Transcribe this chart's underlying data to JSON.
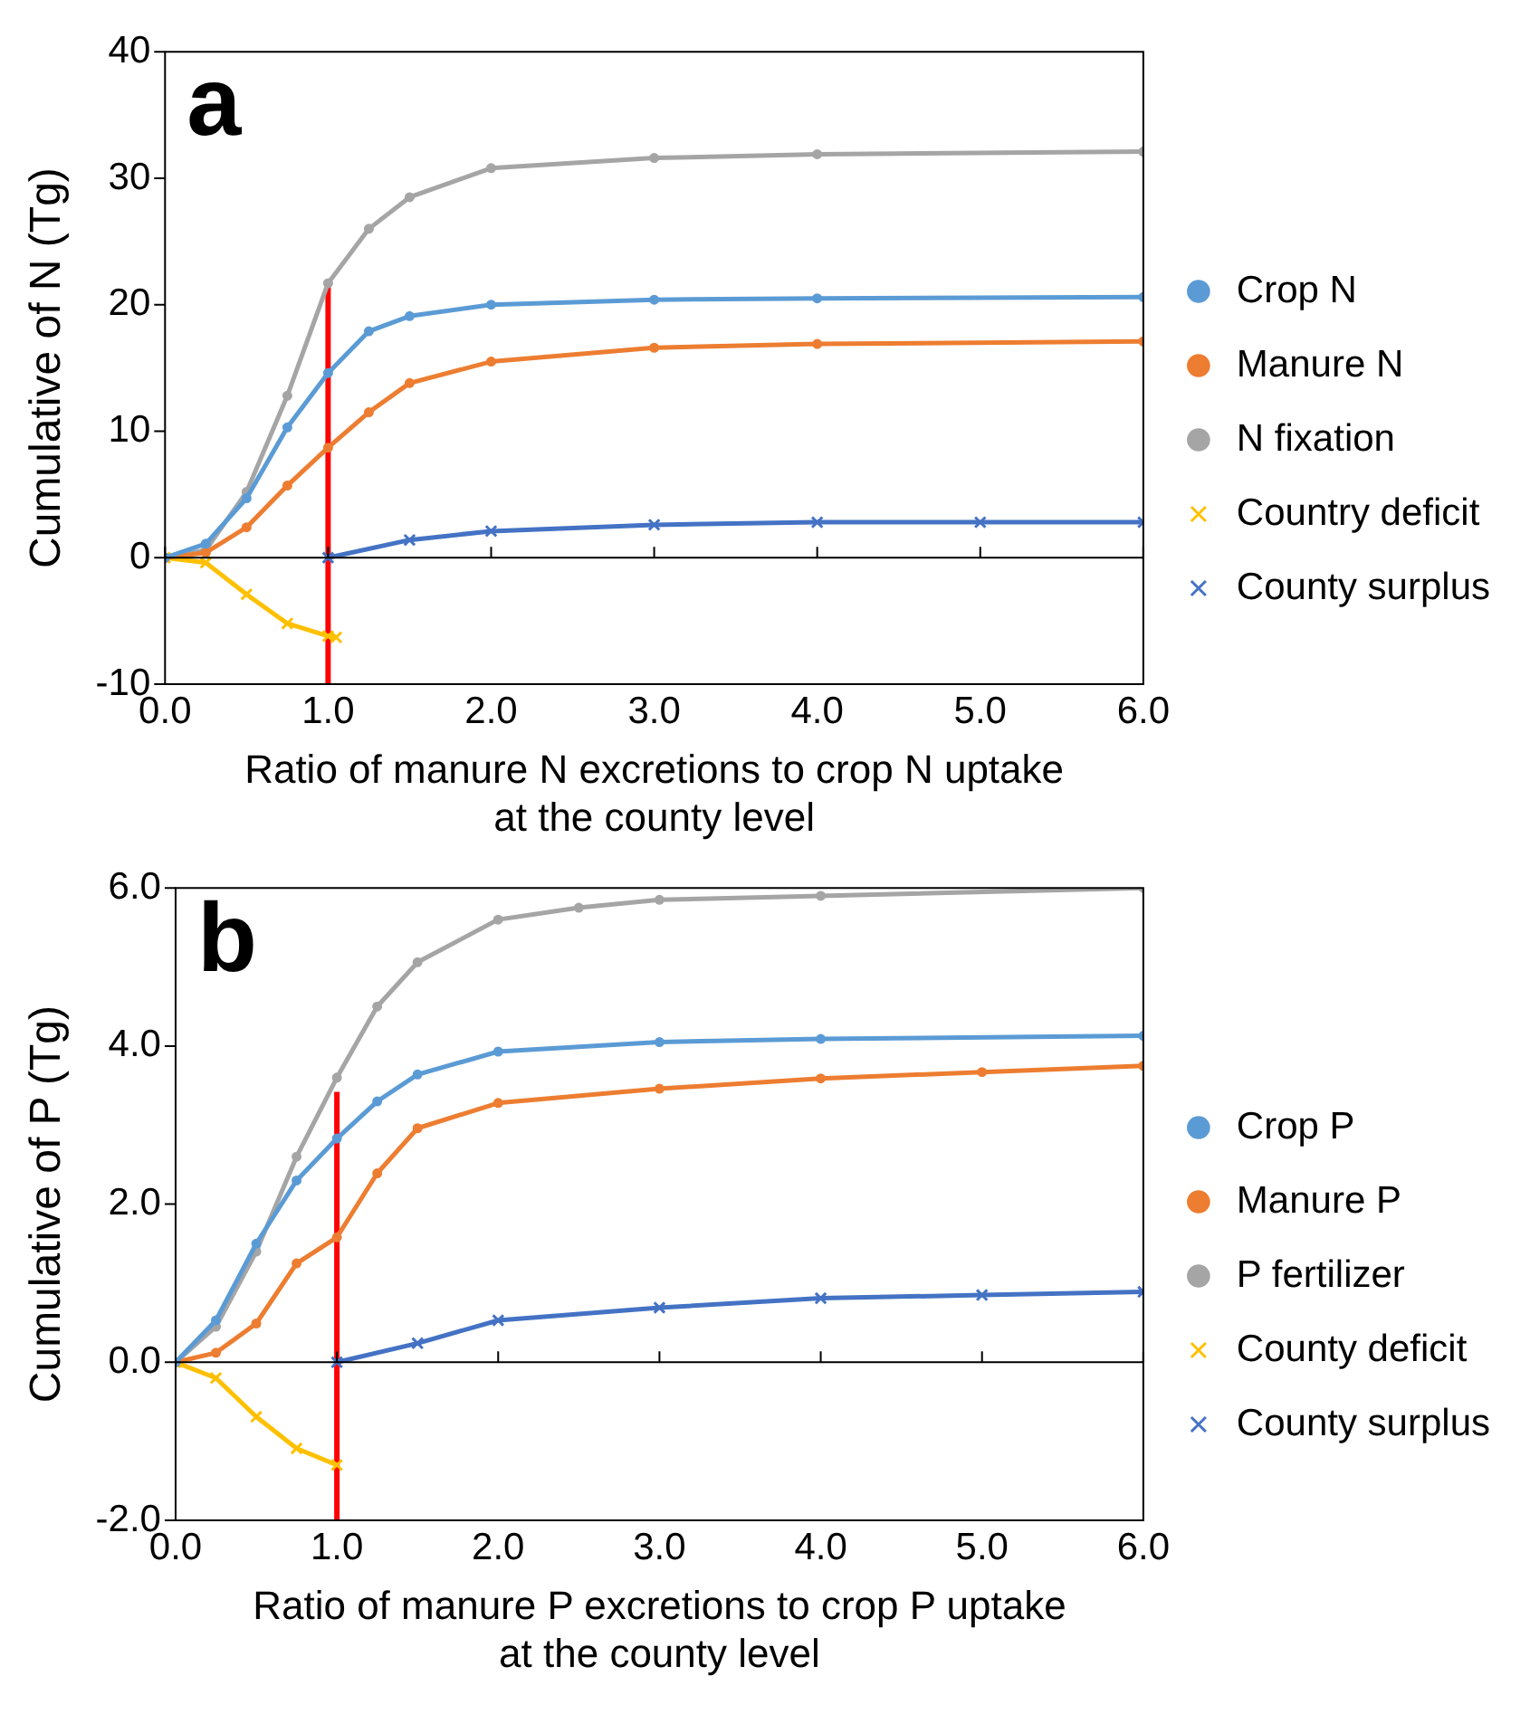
{
  "chart_data": [
    {
      "type": "line",
      "annotations": [
        "a"
      ],
      "xlabel": "Ratio of manure N excretions to crop N uptake\nat the county level",
      "ylabel": "Cumulative of N (Tg)",
      "legend": "right",
      "grid": false,
      "xlim": [
        0,
        6
      ],
      "xticks": [
        {
          "value": 0,
          "label": "0.0"
        },
        {
          "value": 1,
          "label": "1.0"
        },
        {
          "value": 2,
          "label": "2.0"
        },
        {
          "value": 3,
          "label": "3.0"
        },
        {
          "value": 4,
          "label": "4.0"
        },
        {
          "value": 5,
          "label": "5.0"
        },
        {
          "value": 6,
          "label": "6.0"
        }
      ],
      "ylim": [
        -10,
        40
      ],
      "yticks": [
        -10,
        0,
        10,
        20,
        30,
        40
      ],
      "ref_lines": [
        {
          "axis": "y",
          "value": 0,
          "color": "#000000"
        }
      ],
      "series": [
        {
          "name": "Crop N",
          "color": "#5b9bd5",
          "marker": "circle",
          "x": [
            0,
            0.25,
            0.5,
            0.75,
            1,
            1.25,
            1.5,
            2,
            3,
            4,
            6
          ],
          "values": [
            0,
            1.1,
            4.7,
            10.3,
            14.6,
            17.9,
            19.1,
            20,
            20.4,
            20.5,
            20.6
          ]
        },
        {
          "name": "Manure N",
          "color": "#ed7d31",
          "marker": "circle",
          "x": [
            0,
            0.25,
            0.5,
            0.75,
            1,
            1.25,
            1.5,
            2,
            3,
            4,
            6
          ],
          "values": [
            0,
            0.4,
            2.4,
            5.7,
            8.7,
            11.5,
            13.8,
            15.5,
            16.6,
            16.9,
            17.1
          ]
        },
        {
          "name": "N fixation",
          "color": "#a5a5a5",
          "marker": "circle",
          "x": [
            0,
            0.25,
            0.5,
            0.75,
            1,
            1.25,
            1.5,
            2,
            3,
            4,
            6
          ],
          "values": [
            0,
            0.6,
            5.2,
            12.8,
            21.7,
            26,
            28.5,
            30.8,
            31.6,
            31.9,
            32.1
          ]
        },
        {
          "name": "Country deficit",
          "color": "#ffc000",
          "marker": "cross",
          "x": [
            0,
            0.25,
            0.5,
            0.75,
            1,
            1.05
          ],
          "values": [
            0,
            -0.4,
            -2.9,
            -5.2,
            -6.2,
            -6.3
          ]
        },
        {
          "name": "County surplus",
          "color": "#4472c4",
          "marker": "cross",
          "x": [
            1,
            1.5,
            2,
            3,
            4,
            5,
            6
          ],
          "values": [
            0,
            1.4,
            2.1,
            2.6,
            2.8,
            2.8,
            2.8
          ]
        },
        {
          "color": "#ff0000",
          "marker": "none",
          "x": [
            1,
            1
          ],
          "values": [
            -10,
            21.5
          ]
        }
      ]
    },
    {
      "type": "line",
      "annotations": [
        "b"
      ],
      "xlabel": "Ratio of manure P excretions to crop P uptake\nat the county level",
      "ylabel": "Cumulative of P (Tg)",
      "legend": "right",
      "grid": false,
      "xlim": [
        0,
        6
      ],
      "xticks": [
        {
          "value": 0,
          "label": "0.0"
        },
        {
          "value": 1,
          "label": "1.0"
        },
        {
          "value": 2,
          "label": "2.0"
        },
        {
          "value": 3,
          "label": "3.0"
        },
        {
          "value": 4,
          "label": "4.0"
        },
        {
          "value": 5,
          "label": "5.0"
        },
        {
          "value": 6,
          "label": "6.0"
        }
      ],
      "ylim": [
        -2,
        6
      ],
      "yticks": [
        {
          "value": -2,
          "label": "-2.0"
        },
        {
          "value": 0,
          "label": "0.0"
        },
        {
          "value": 2,
          "label": "2.0"
        },
        {
          "value": 4,
          "label": "4.0"
        },
        {
          "value": 6,
          "label": "6.0"
        }
      ],
      "ref_lines": [
        {
          "axis": "y",
          "value": 0,
          "color": "#000000"
        }
      ],
      "series": [
        {
          "name": "Crop P",
          "color": "#5b9bd5",
          "marker": "circle",
          "x": [
            0,
            0.25,
            0.5,
            0.75,
            1,
            1.25,
            1.5,
            2,
            3,
            4,
            6
          ],
          "values": [
            0,
            0.53,
            1.5,
            2.3,
            2.83,
            3.3,
            3.64,
            3.93,
            4.05,
            4.09,
            4.13
          ]
        },
        {
          "name": "Manure P",
          "color": "#ed7d31",
          "marker": "circle",
          "x": [
            0,
            0.25,
            0.5,
            0.75,
            1,
            1.25,
            1.5,
            2,
            3,
            4,
            5,
            6
          ],
          "values": [
            0,
            0.12,
            0.49,
            1.25,
            1.58,
            2.39,
            2.96,
            3.28,
            3.46,
            3.59,
            3.67,
            3.75
          ]
        },
        {
          "name": "P fertilizer",
          "color": "#a5a5a5",
          "marker": "circle",
          "x": [
            0,
            0.25,
            0.5,
            0.75,
            1,
            1.25,
            1.5,
            2,
            2.5,
            3,
            4,
            6
          ],
          "values": [
            0,
            0.45,
            1.4,
            2.6,
            3.6,
            4.5,
            5.06,
            5.6,
            5.75,
            5.85,
            5.9,
            6
          ]
        },
        {
          "name": "County deficit",
          "color": "#ffc000",
          "marker": "cross",
          "x": [
            0,
            0.25,
            0.5,
            0.75,
            1
          ],
          "values": [
            0,
            -0.2,
            -0.69,
            -1.09,
            -1.3
          ]
        },
        {
          "name": "County surplus",
          "color": "#4472c4",
          "marker": "cross",
          "x": [
            1,
            1.5,
            2,
            3,
            4,
            5,
            6
          ],
          "values": [
            0,
            0.24,
            0.53,
            0.69,
            0.81,
            0.85,
            0.89
          ]
        },
        {
          "color": "#ff0000",
          "marker": "none",
          "x": [
            1,
            1
          ],
          "values": [
            -2,
            3.42
          ]
        }
      ]
    }
  ]
}
